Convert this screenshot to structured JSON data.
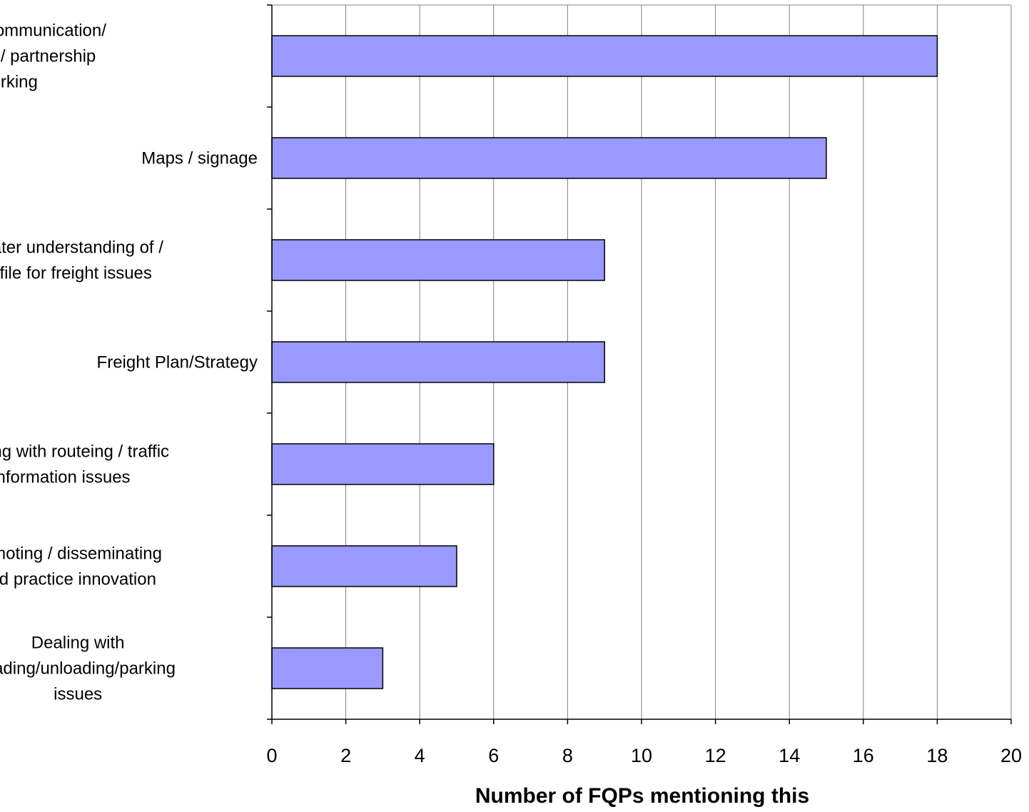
{
  "chart_data": {
    "type": "bar",
    "orientation": "horizontal",
    "categories": [
      "Improved communication/ discussion/ partnership working",
      "Maps / signage",
      "Greater understanding of / profile for freight issues",
      "Freight Plan/Strategy",
      "Dealing with routeing / traffic information issues",
      "Promoting / disseminating good practice innovation",
      "Dealing with loading/unloading/parking issues"
    ],
    "category_lines": [
      [
        "Improved communication/",
        "discussion/ partnership",
        "working"
      ],
      [
        "Maps / signage"
      ],
      [
        "Greater understanding of /",
        "profile for freight issues"
      ],
      [
        "Freight Plan/Strategy"
      ],
      [
        "Dealing with routeing / traffic",
        "information issues"
      ],
      [
        "Promoting / disseminating",
        "good practice innovation"
      ],
      [
        "Dealing with",
        "loading/unloading/parking",
        "issues"
      ]
    ],
    "values": [
      18,
      15,
      9,
      9,
      6,
      5,
      3
    ],
    "xlabel": "Number of FQPs mentioning this",
    "ylabel": "",
    "title": "",
    "xlim": [
      0,
      20
    ],
    "xticks": [
      "0",
      "2",
      "4",
      "6",
      "8",
      "10",
      "12",
      "14",
      "16",
      "18",
      "20"
    ],
    "grid": "vertical",
    "legend": "none",
    "colors": {
      "bar_fill": "#9999ff",
      "bar_stroke": "#000000",
      "grid": "#808080",
      "axis": "#000000",
      "plot_border": "#808080"
    }
  }
}
